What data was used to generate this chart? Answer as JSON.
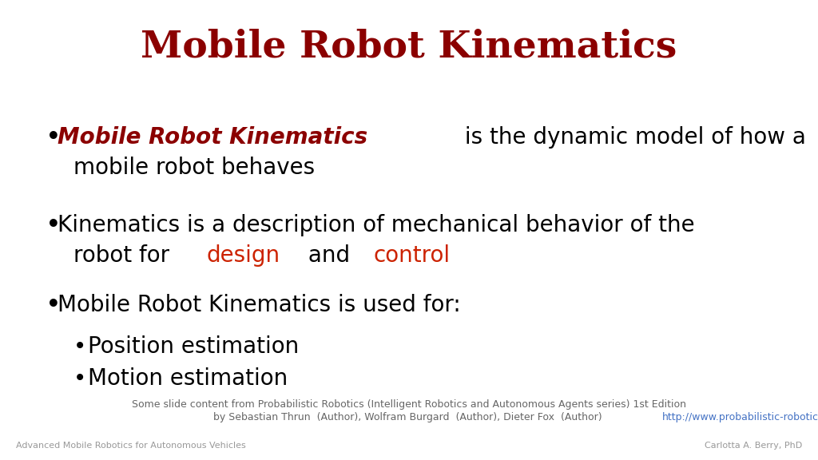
{
  "title": "Mobile Robot Kinematics",
  "title_color": "#8B0000",
  "title_fontsize": 34,
  "background_color": "#FFFFFF",
  "bullet_color": "#000000",
  "dark_red": "#8B0000",
  "red_color": "#CC2200",
  "bullet_fontsize": 20,
  "sub_bullet_fontsize": 20,
  "footer_fontsize": 9,
  "footer_small_fontsize": 8,
  "footer_line1": "Some slide content from Probabilistic Robotics (Intelligent Robotics and Autonomous Agents series) 1st Edition",
  "footer_line2_prefix": "by Sebastian Thrun  (Author), Wolfram Burgard  (Author), Dieter Fox  (Author) ",
  "footer_link": "http://www.probabilistic-robotics.org/",
  "footer_left": "Advanced Mobile Robotics for Autonomous Vehicles",
  "footer_right": "Carlotta A. Berry, PhD"
}
